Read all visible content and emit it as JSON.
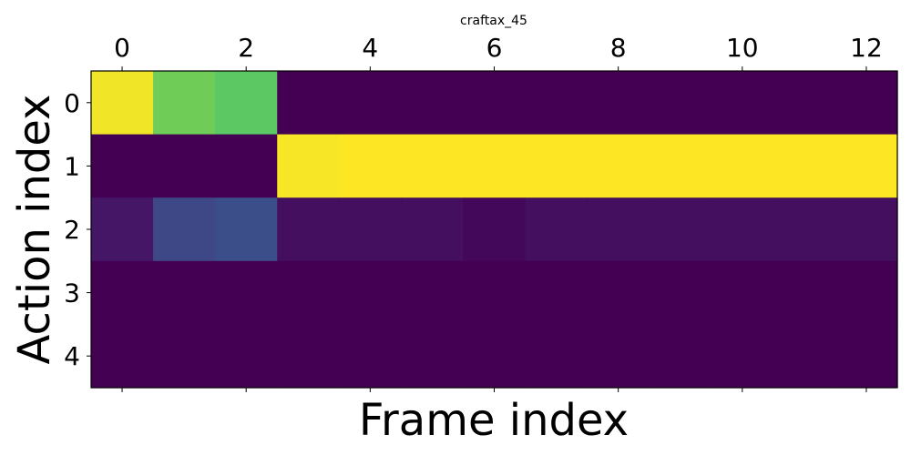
{
  "chart_data": {
    "type": "heatmap",
    "title": "craftax_45",
    "xlabel": "Frame index",
    "ylabel": "Action index",
    "xaxis_position": "top",
    "x_ticks": [
      0,
      2,
      4,
      6,
      8,
      10,
      12
    ],
    "y_ticks": [
      0,
      1,
      2,
      3,
      4
    ],
    "x_range": [
      -0.5,
      12.5
    ],
    "y_range": [
      -0.5,
      4.5
    ],
    "grid": false,
    "colormap": "viridis",
    "value_range": [
      0,
      1
    ],
    "rows": [
      {
        "action": 0,
        "values": [
          0.98,
          0.78,
          0.75,
          0.0,
          0.0,
          0.0,
          0.0,
          0.0,
          0.0,
          0.0,
          0.0,
          0.0,
          0.0
        ]
      },
      {
        "action": 1,
        "values": [
          0.0,
          0.0,
          0.0,
          0.99,
          1.0,
          1.0,
          1.0,
          1.0,
          1.0,
          1.0,
          1.0,
          1.0,
          1.0
        ]
      },
      {
        "action": 2,
        "values": [
          0.06,
          0.22,
          0.24,
          0.04,
          0.04,
          0.04,
          0.02,
          0.04,
          0.04,
          0.04,
          0.04,
          0.04,
          0.04
        ]
      },
      {
        "action": 3,
        "values": [
          0.0,
          0.0,
          0.0,
          0.0,
          0.0,
          0.0,
          0.0,
          0.0,
          0.0,
          0.0,
          0.0,
          0.0,
          0.0
        ]
      },
      {
        "action": 4,
        "values": [
          0.0,
          0.0,
          0.0,
          0.0,
          0.0,
          0.0,
          0.0,
          0.0,
          0.0,
          0.0,
          0.0,
          0.0,
          0.0
        ]
      }
    ]
  }
}
